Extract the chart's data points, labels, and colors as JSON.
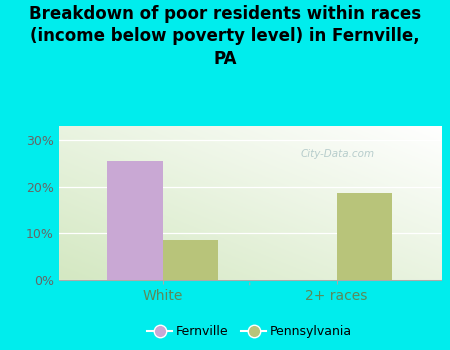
{
  "title": "Breakdown of poor residents within races\n(income below poverty level) in Fernville,\nPA",
  "categories": [
    "White",
    "2+ races"
  ],
  "fernville_values": [
    25.5,
    0
  ],
  "pennsylvania_values": [
    8.5,
    18.7
  ],
  "fernville_color": "#c9a8d4",
  "pennsylvania_color": "#b8c47a",
  "background_color": "#00eded",
  "yticks": [
    0,
    10,
    20,
    30
  ],
  "ytick_labels": [
    "0%",
    "10%",
    "20%",
    "30%"
  ],
  "ylim": [
    0,
    33
  ],
  "watermark": "City-Data.com",
  "legend_fernville": "Fernville",
  "legend_pennsylvania": "Pennsylvania",
  "title_fontsize": 12,
  "bar_width": 0.32,
  "xtick_color": "#5a8a5a",
  "ytick_color": "#666666"
}
